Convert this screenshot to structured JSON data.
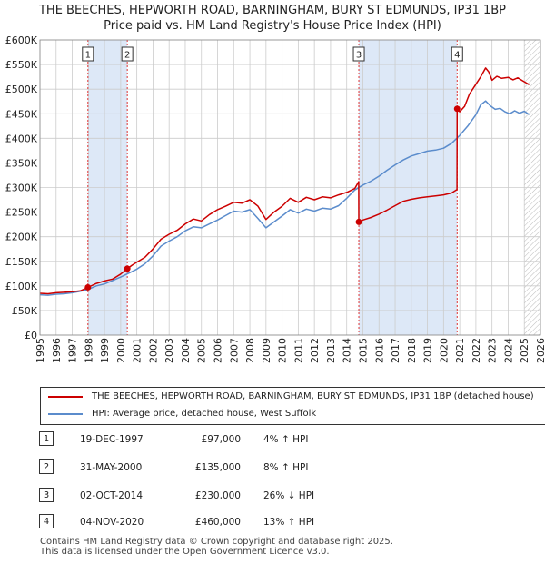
{
  "title_line1": "THE BEECHES, HEPWORTH ROAD, BARNINGHAM, BURY ST EDMUNDS, IP31 1BP",
  "title_line2": "Price paid vs. HM Land Registry's House Price Index (HPI)",
  "colors": {
    "property": "#cc0000",
    "hpi": "#5b8ccc",
    "band": "#dde8f7",
    "marker_line": "#dd3333",
    "grid": "#cccccc"
  },
  "legend": {
    "property": "THE BEECHES, HEPWORTH ROAD, BARNINGHAM, BURY ST EDMUNDS, IP31 1BP (detached house)",
    "hpi": "HPI: Average price, detached house, West Suffolk"
  },
  "sales": [
    {
      "num": "1",
      "date": "19-DEC-1997",
      "price": "£97,000",
      "hpi": "4% ↑ HPI"
    },
    {
      "num": "2",
      "date": "31-MAY-2000",
      "price": "£135,000",
      "hpi": "8% ↑ HPI"
    },
    {
      "num": "3",
      "date": "02-OCT-2014",
      "price": "£230,000",
      "hpi": "26% ↓ HPI"
    },
    {
      "num": "4",
      "date": "04-NOV-2020",
      "price": "£460,000",
      "hpi": "13% ↑ HPI"
    }
  ],
  "footer_line1": "Contains HM Land Registry data © Crown copyright and database right 2025.",
  "footer_line2": "This data is licensed under the Open Government Licence v3.0.",
  "chart_data": {
    "type": "line",
    "title": "Price paid vs. HM Land Registry's House Price Index (HPI)",
    "xlabel": "",
    "ylabel": "",
    "xlim": [
      1995,
      2026
    ],
    "ylim": [
      0,
      600000
    ],
    "y_ticks": [
      0,
      50000,
      100000,
      150000,
      200000,
      250000,
      300000,
      350000,
      400000,
      450000,
      500000,
      550000,
      600000
    ],
    "y_tick_labels": [
      "£0",
      "£50K",
      "£100K",
      "£150K",
      "£200K",
      "£250K",
      "£300K",
      "£350K",
      "£400K",
      "£450K",
      "£500K",
      "£550K",
      "£600K"
    ],
    "x_ticks": [
      1995,
      1996,
      1997,
      1998,
      1999,
      2000,
      2001,
      2002,
      2003,
      2004,
      2005,
      2006,
      2007,
      2008,
      2009,
      2010,
      2011,
      2012,
      2013,
      2014,
      2015,
      2016,
      2017,
      2018,
      2019,
      2020,
      2021,
      2022,
      2023,
      2024,
      2025,
      2026
    ],
    "x_tick_labels": [
      "1995",
      "1996",
      "1997",
      "1998",
      "1999",
      "2000",
      "2001",
      "2002",
      "2003",
      "2004",
      "2005",
      "2006",
      "2007",
      "2008",
      "2009",
      "2010",
      "2011",
      "2012",
      "2013",
      "2014",
      "2015",
      "2016",
      "2017",
      "2018",
      "2019",
      "2020",
      "2021",
      "2022",
      "2023",
      "2024",
      "2025",
      "2026"
    ],
    "grid": true,
    "shaded_ranges": [
      [
        1997.97,
        2000.41
      ],
      [
        2014.75,
        2020.84
      ]
    ],
    "hatched_range": [
      2025.0,
      2026.0
    ],
    "markers": [
      {
        "label": "1",
        "x": 1997.97,
        "y": 97000
      },
      {
        "label": "2",
        "x": 2000.41,
        "y": 135000
      },
      {
        "label": "3",
        "x": 2014.75,
        "y": 230000
      },
      {
        "label": "4",
        "x": 2020.84,
        "y": 460000
      }
    ],
    "series": [
      {
        "name": "THE BEECHES, HEPWORTH ROAD, BARNINGHAM, BURY ST EDMUNDS, IP31 1BP (detached house)",
        "x": [
          1995.0,
          1995.5,
          1996.0,
          1996.5,
          1997.0,
          1997.5,
          1997.97,
          1998.5,
          1999.0,
          1999.5,
          2000.0,
          2000.41,
          2000.7,
          2001.0,
          2001.5,
          2002.0,
          2002.5,
          2003.0,
          2003.5,
          2004.0,
          2004.5,
          2005.0,
          2005.5,
          2006.0,
          2006.5,
          2007.0,
          2007.5,
          2008.0,
          2008.5,
          2009.0,
          2009.5,
          2010.0,
          2010.5,
          2011.0,
          2011.5,
          2012.0,
          2012.5,
          2013.0,
          2013.5,
          2014.0,
          2014.5,
          2014.74,
          2014.75,
          2015.0,
          2015.5,
          2016.0,
          2016.5,
          2017.0,
          2017.5,
          2018.0,
          2018.5,
          2019.0,
          2019.5,
          2020.0,
          2020.5,
          2020.83,
          2020.84,
          2021.0,
          2021.3,
          2021.6,
          2022.0,
          2022.3,
          2022.6,
          2022.8,
          2023.0,
          2023.3,
          2023.6,
          2024.0,
          2024.3,
          2024.6,
          2024.9,
          2025.1,
          2025.3
        ],
        "y": [
          85000,
          84000,
          86000,
          87000,
          88000,
          90000,
          97000,
          105000,
          110000,
          114000,
          124000,
          135000,
          142000,
          148000,
          158000,
          175000,
          195000,
          205000,
          213000,
          226000,
          236000,
          232000,
          245000,
          255000,
          262000,
          270000,
          268000,
          275000,
          262000,
          235000,
          250000,
          262000,
          278000,
          270000,
          280000,
          275000,
          281000,
          279000,
          285000,
          290000,
          298000,
          312000,
          230000,
          234000,
          239000,
          246000,
          254000,
          263000,
          272000,
          276000,
          279000,
          281000,
          283000,
          285000,
          289000,
          296000,
          460000,
          454000,
          465000,
          490000,
          510000,
          525000,
          543000,
          535000,
          518000,
          526000,
          522000,
          524000,
          519000,
          523000,
          517000,
          513000,
          509000
        ]
      },
      {
        "name": "HPI: Average price, detached house, West Suffolk",
        "x": [
          1995.0,
          1995.5,
          1996.0,
          1996.5,
          1997.0,
          1997.5,
          1998.0,
          1998.5,
          1999.0,
          1999.5,
          2000.0,
          2000.5,
          2001.0,
          2001.5,
          2002.0,
          2002.5,
          2003.0,
          2003.5,
          2004.0,
          2004.5,
          2005.0,
          2005.5,
          2006.0,
          2006.5,
          2007.0,
          2007.5,
          2008.0,
          2008.5,
          2009.0,
          2009.5,
          2010.0,
          2010.5,
          2011.0,
          2011.5,
          2012.0,
          2012.5,
          2013.0,
          2013.5,
          2014.0,
          2014.5,
          2015.0,
          2015.5,
          2016.0,
          2016.5,
          2017.0,
          2017.5,
          2018.0,
          2018.5,
          2019.0,
          2019.5,
          2020.0,
          2020.5,
          2021.0,
          2021.5,
          2022.0,
          2022.3,
          2022.6,
          2022.9,
          2023.2,
          2023.5,
          2023.8,
          2024.1,
          2024.4,
          2024.7,
          2025.0,
          2025.3
        ],
        "y": [
          82000,
          81000,
          83000,
          84000,
          86000,
          89000,
          93000,
          100000,
          104000,
          111000,
          118000,
          126000,
          134000,
          145000,
          161000,
          181000,
          191000,
          200000,
          212000,
          220000,
          218000,
          226000,
          234000,
          243000,
          252000,
          250000,
          255000,
          237000,
          218000,
          230000,
          242000,
          255000,
          248000,
          256000,
          252000,
          258000,
          256000,
          263000,
          278000,
          295000,
          305000,
          313000,
          323000,
          335000,
          346000,
          356000,
          364000,
          369000,
          374000,
          376000,
          380000,
          390000,
          406000,
          425000,
          448000,
          468000,
          476000,
          466000,
          459000,
          461000,
          454000,
          450000,
          456000,
          451000,
          455000,
          448000
        ]
      }
    ]
  }
}
